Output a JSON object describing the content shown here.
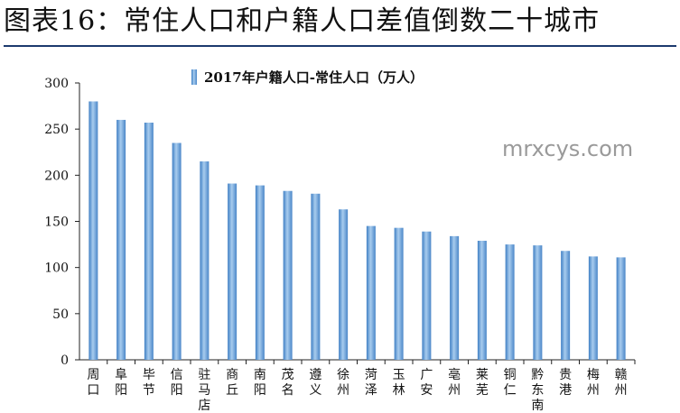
{
  "title": "图表16：常住人口和户籍人口差值倒数二十城市",
  "watermark": "mrxcys.com",
  "chart_data": {
    "type": "bar",
    "legend": "2017年户籍人口-常住人口（万人）",
    "legend_position": "top-center",
    "categories": [
      "周口",
      "阜阳",
      "毕节",
      "信阳",
      "驻马店",
      "商丘",
      "南阳",
      "茂名",
      "遵义",
      "徐州",
      "菏泽",
      "玉林",
      "广安",
      "亳州",
      "莱芜",
      "铜仁",
      "黔东南",
      "贵港",
      "梅州",
      "赣州"
    ],
    "values": [
      280,
      260,
      257,
      235,
      215,
      191,
      189,
      183,
      180,
      163,
      145,
      143,
      139,
      134,
      129,
      125,
      124,
      118,
      112,
      111
    ],
    "ylim": [
      0,
      300
    ],
    "yticks": [
      0,
      50,
      100,
      150,
      200,
      250,
      300
    ],
    "grid": false,
    "bar_color": "#5b9bd5"
  }
}
